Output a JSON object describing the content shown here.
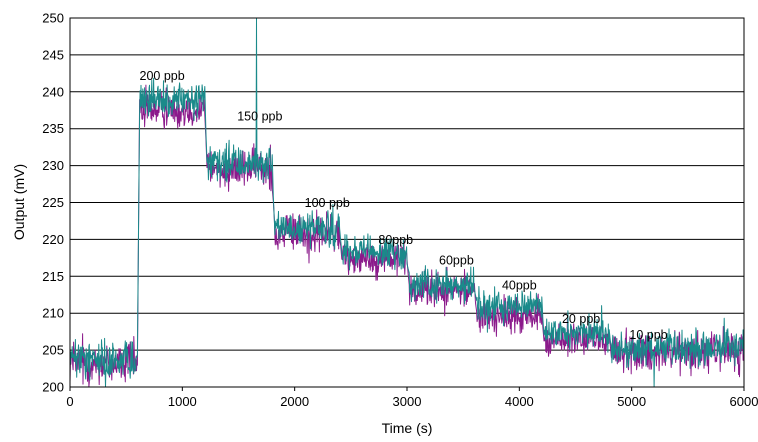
{
  "chart_data": {
    "type": "line",
    "title": "",
    "xlabel": "Time (s)",
    "ylabel": "Output (mV)",
    "xlim": [
      0,
      6000
    ],
    "ylim": [
      200,
      250
    ],
    "x_ticks": [
      0,
      1000,
      2000,
      3000,
      4000,
      5000,
      6000
    ],
    "y_ticks": [
      200,
      205,
      210,
      215,
      220,
      225,
      230,
      235,
      240,
      245,
      250
    ],
    "grid": "horizontal",
    "legend": "none",
    "colors": {
      "series_1": "#8B1A8B",
      "series_2": "#1A8A8A"
    },
    "series": [
      {
        "color": "#8B1A8B",
        "segments": [
          {
            "x_start": 0,
            "x_end": 600,
            "mean": 203.3,
            "noise": 2.2
          },
          {
            "x_start": 620,
            "x_end": 1200,
            "mean": 237.8,
            "noise": 2.0
          },
          {
            "x_start": 1220,
            "x_end": 1800,
            "mean": 229.6,
            "noise": 2.0
          },
          {
            "x_start": 1820,
            "x_end": 2400,
            "mean": 220.8,
            "noise": 2.0
          },
          {
            "x_start": 2420,
            "x_end": 3000,
            "mean": 217.5,
            "noise": 1.8
          },
          {
            "x_start": 3020,
            "x_end": 3600,
            "mean": 213.2,
            "noise": 1.8
          },
          {
            "x_start": 3620,
            "x_end": 4200,
            "mean": 209.6,
            "noise": 1.8
          },
          {
            "x_start": 4220,
            "x_end": 4800,
            "mean": 206.4,
            "noise": 1.8
          },
          {
            "x_start": 4820,
            "x_end": 6000,
            "mean": 204.8,
            "noise": 2.0
          }
        ]
      },
      {
        "color": "#1A8A8A",
        "segments": [
          {
            "x_start": 0,
            "x_end": 600,
            "mean": 203.8,
            "noise": 2.0
          },
          {
            "x_start": 620,
            "x_end": 1200,
            "mean": 238.8,
            "noise": 1.8
          },
          {
            "x_start": 1220,
            "x_end": 1800,
            "mean": 230.3,
            "noise": 1.8
          },
          {
            "x_start": 1820,
            "x_end": 2400,
            "mean": 221.5,
            "noise": 1.8
          },
          {
            "x_start": 2420,
            "x_end": 3000,
            "mean": 218.2,
            "noise": 1.6
          },
          {
            "x_start": 3020,
            "x_end": 3600,
            "mean": 213.9,
            "noise": 1.6
          },
          {
            "x_start": 3620,
            "x_end": 4200,
            "mean": 211.0,
            "noise": 1.6
          },
          {
            "x_start": 4220,
            "x_end": 4800,
            "mean": 207.3,
            "noise": 1.6
          },
          {
            "x_start": 4820,
            "x_end": 6000,
            "mean": 205.3,
            "noise": 1.8
          }
        ],
        "spikes": [
          {
            "x": 1660,
            "y": 250
          },
          {
            "x": 5200,
            "y": 200
          }
        ]
      }
    ],
    "annotations": [
      {
        "text": "200 ppb",
        "x": 820,
        "y": 241.6
      },
      {
        "text": "150 ppb",
        "x": 1690,
        "y": 236.1
      },
      {
        "text": "100 ppb",
        "x": 2290,
        "y": 224.4
      },
      {
        "text": "80ppb",
        "x": 2900,
        "y": 219.4
      },
      {
        "text": "60ppb",
        "x": 3440,
        "y": 216.6
      },
      {
        "text": "40ppb",
        "x": 4000,
        "y": 213.2
      },
      {
        "text": "20 ppb",
        "x": 4550,
        "y": 208.7
      },
      {
        "text": "10 ppb",
        "x": 5150,
        "y": 206.5
      }
    ]
  }
}
